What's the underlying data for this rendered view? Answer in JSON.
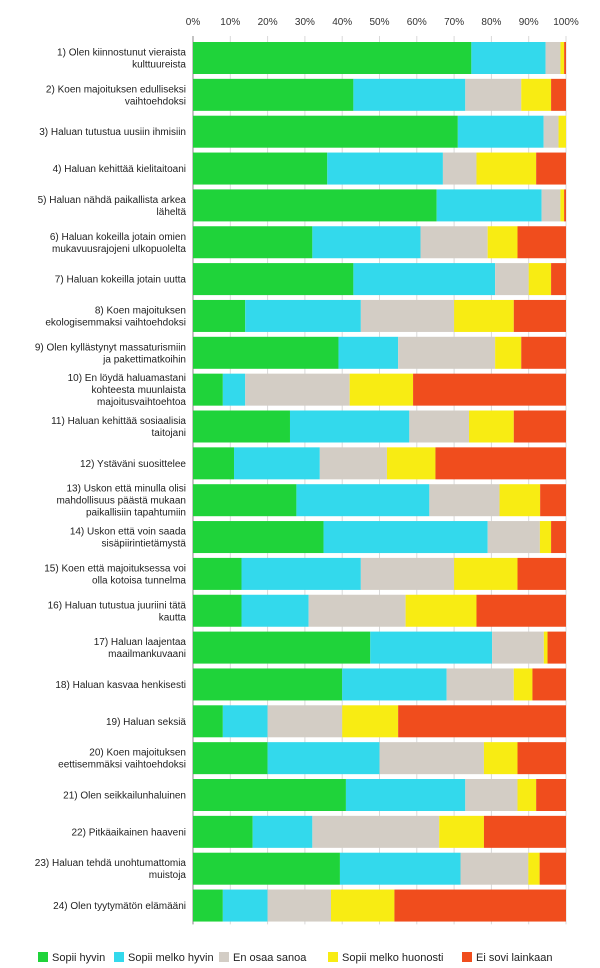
{
  "chart_data": {
    "type": "bar",
    "orientation": "horizontal",
    "stacked": true,
    "normalized": true,
    "title": "",
    "xlabel": "",
    "ylabel": "",
    "xlim": [
      0,
      100
    ],
    "ticks": [
      "0%",
      "10%",
      "20%",
      "30%",
      "40%",
      "50%",
      "60%",
      "70%",
      "80%",
      "90%",
      "100%"
    ],
    "legend_position": "bottom",
    "categories": [
      [
        "1) Olen kiinnostunut vieraista",
        "kulttuureista"
      ],
      [
        "2) Koen majoituksen edulliseksi",
        "vaihtoehdoksi"
      ],
      [
        "3) Haluan tutustua uusiin ihmisiin"
      ],
      [
        "4) Haluan kehittää kielitaitoani"
      ],
      [
        "5) Haluan nähdä paikallista arkea",
        "läheltä"
      ],
      [
        "6) Haluan kokeilla jotain omien",
        "mukavuusrajojeni ulkopuolelta"
      ],
      [
        "7) Haluan kokeilla jotain uutta"
      ],
      [
        "8) Koen majoituksen",
        "ekologisemmaksi vaihtoehdoksi"
      ],
      [
        "9) Olen kyllästynyt massaturismiin",
        "ja pakettimatkoihin"
      ],
      [
        "10) En löydä haluamastani",
        "kohteesta muunlaista",
        "majoitusvaihtoehtoa"
      ],
      [
        "11) Haluan kehittää sosiaalisia",
        "taitojani"
      ],
      [
        "12) Ystäväni suosittelee"
      ],
      [
        "13) Uskon että minulla olisi",
        "mahdollisuus päästä mukaan",
        "paikallisiin tapahtumiin"
      ],
      [
        "14) Uskon että voin saada",
        "sisäpiirintietämystä"
      ],
      [
        "15) Koen että majoituksessa voi",
        "olla kotoisa tunnelma"
      ],
      [
        "16) Haluan tutustua juuriini tätä",
        "kautta"
      ],
      [
        "17) Haluan laajentaa",
        "maailmankuvaani"
      ],
      [
        "18) Haluan kasvaa henkisesti"
      ],
      [
        "19) Haluan seksiä"
      ],
      [
        "20) Koen majoituksen",
        "eettisemmäksi vaihtoehdoksi"
      ],
      [
        "21) Olen seikkailunhaluinen"
      ],
      [
        "22) Pitkäaikainen haaveni"
      ],
      [
        "23) Haluan tehdä unohtumattomia",
        "muistoja"
      ],
      [
        "24) Olen tyytymätön elämääni"
      ]
    ],
    "series": [
      {
        "name": "Sopii hyvin",
        "color": "#1fd33a",
        "values": [
          75,
          43,
          71,
          36,
          65,
          32,
          43,
          14,
          39,
          8,
          26,
          11,
          28,
          35,
          13,
          13,
          48,
          40,
          8,
          20,
          41,
          16,
          39,
          8
        ]
      },
      {
        "name": "Sopii melko hyvin",
        "color": "#33d9ec",
        "values": [
          20,
          30,
          23,
          31,
          28,
          29,
          38,
          31,
          16,
          6,
          32,
          23,
          36,
          44,
          32,
          18,
          33,
          28,
          12,
          30,
          32,
          16,
          32,
          12
        ]
      },
      {
        "name": "En osaa sanoa",
        "color": "#d3cdc5",
        "values": [
          4,
          15,
          4,
          9,
          5,
          18,
          9,
          25,
          26,
          28,
          16,
          18,
          19,
          14,
          25,
          26,
          14,
          18,
          20,
          28,
          14,
          34,
          18,
          17
        ]
      },
      {
        "name": "Sopii melko huonosti",
        "color": "#f8ec13",
        "values": [
          1,
          8,
          2,
          16,
          1,
          8,
          6,
          16,
          7,
          17,
          12,
          13,
          11,
          3,
          17,
          19,
          1,
          5,
          15,
          9,
          5,
          12,
          3,
          17
        ]
      },
      {
        "name": "Ei sovi lainkaan",
        "color": "#f04d1d",
        "values": [
          0.5,
          4,
          0,
          8,
          0.5,
          13,
          4,
          14,
          12,
          41,
          14,
          35,
          7,
          4,
          13,
          24,
          5,
          9,
          45,
          13,
          8,
          22,
          7,
          46
        ]
      }
    ]
  }
}
